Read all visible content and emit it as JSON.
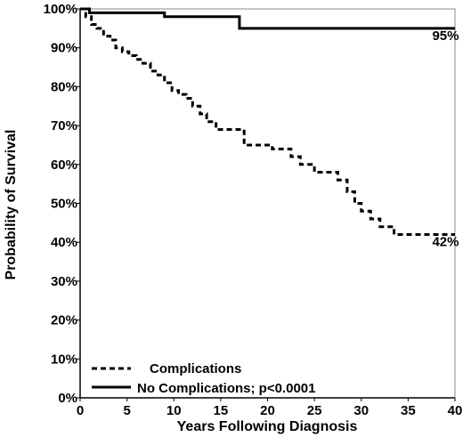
{
  "chart_data": {
    "type": "line",
    "xlabel": "Years Following Diagnosis",
    "ylabel": "Probability of Survival",
    "xlim": [
      0,
      40
    ],
    "ylim": [
      0,
      100
    ],
    "x_ticks": [
      0,
      5,
      10,
      15,
      20,
      25,
      30,
      35,
      40
    ],
    "y_ticks": [
      0,
      10,
      20,
      30,
      40,
      50,
      60,
      70,
      80,
      90,
      100
    ],
    "y_tick_labels": [
      "0%",
      "10%",
      "20%",
      "30%",
      "40%",
      "50%",
      "60%",
      "70%",
      "80%",
      "90%",
      "100%"
    ],
    "grid": false,
    "legend_position": "bottom-left",
    "series": [
      {
        "name": "Complications",
        "style": "dashed",
        "step": true,
        "x": [
          0,
          0.6,
          1.2,
          1.8,
          2.5,
          3.2,
          3.8,
          4.5,
          5.2,
          6,
          6.7,
          7.5,
          8.3,
          9,
          9.8,
          10.5,
          11.3,
          12,
          12.8,
          13.5,
          14.5,
          15.5,
          17.5,
          20.5,
          22.5,
          23.5,
          25,
          27.5,
          28.5,
          29.3,
          30,
          31,
          32,
          33.5,
          40
        ],
        "y": [
          100,
          98,
          96,
          95,
          93,
          92,
          90,
          89,
          88,
          87,
          86,
          84,
          83,
          81,
          79,
          78,
          77,
          75,
          73,
          71,
          69,
          69,
          65,
          64,
          62,
          60,
          58,
          56,
          53,
          50,
          48,
          46,
          44,
          42,
          42
        ]
      },
      {
        "name": "No Complications; p<0.0001",
        "style": "solid",
        "step": true,
        "x": [
          0,
          1,
          9,
          17,
          40
        ],
        "y": [
          100,
          99,
          98,
          95,
          95
        ]
      }
    ],
    "annotations": [
      {
        "text": "95%",
        "x": 39,
        "y": 92
      },
      {
        "text": "42%",
        "x": 39,
        "y": 39
      }
    ]
  }
}
